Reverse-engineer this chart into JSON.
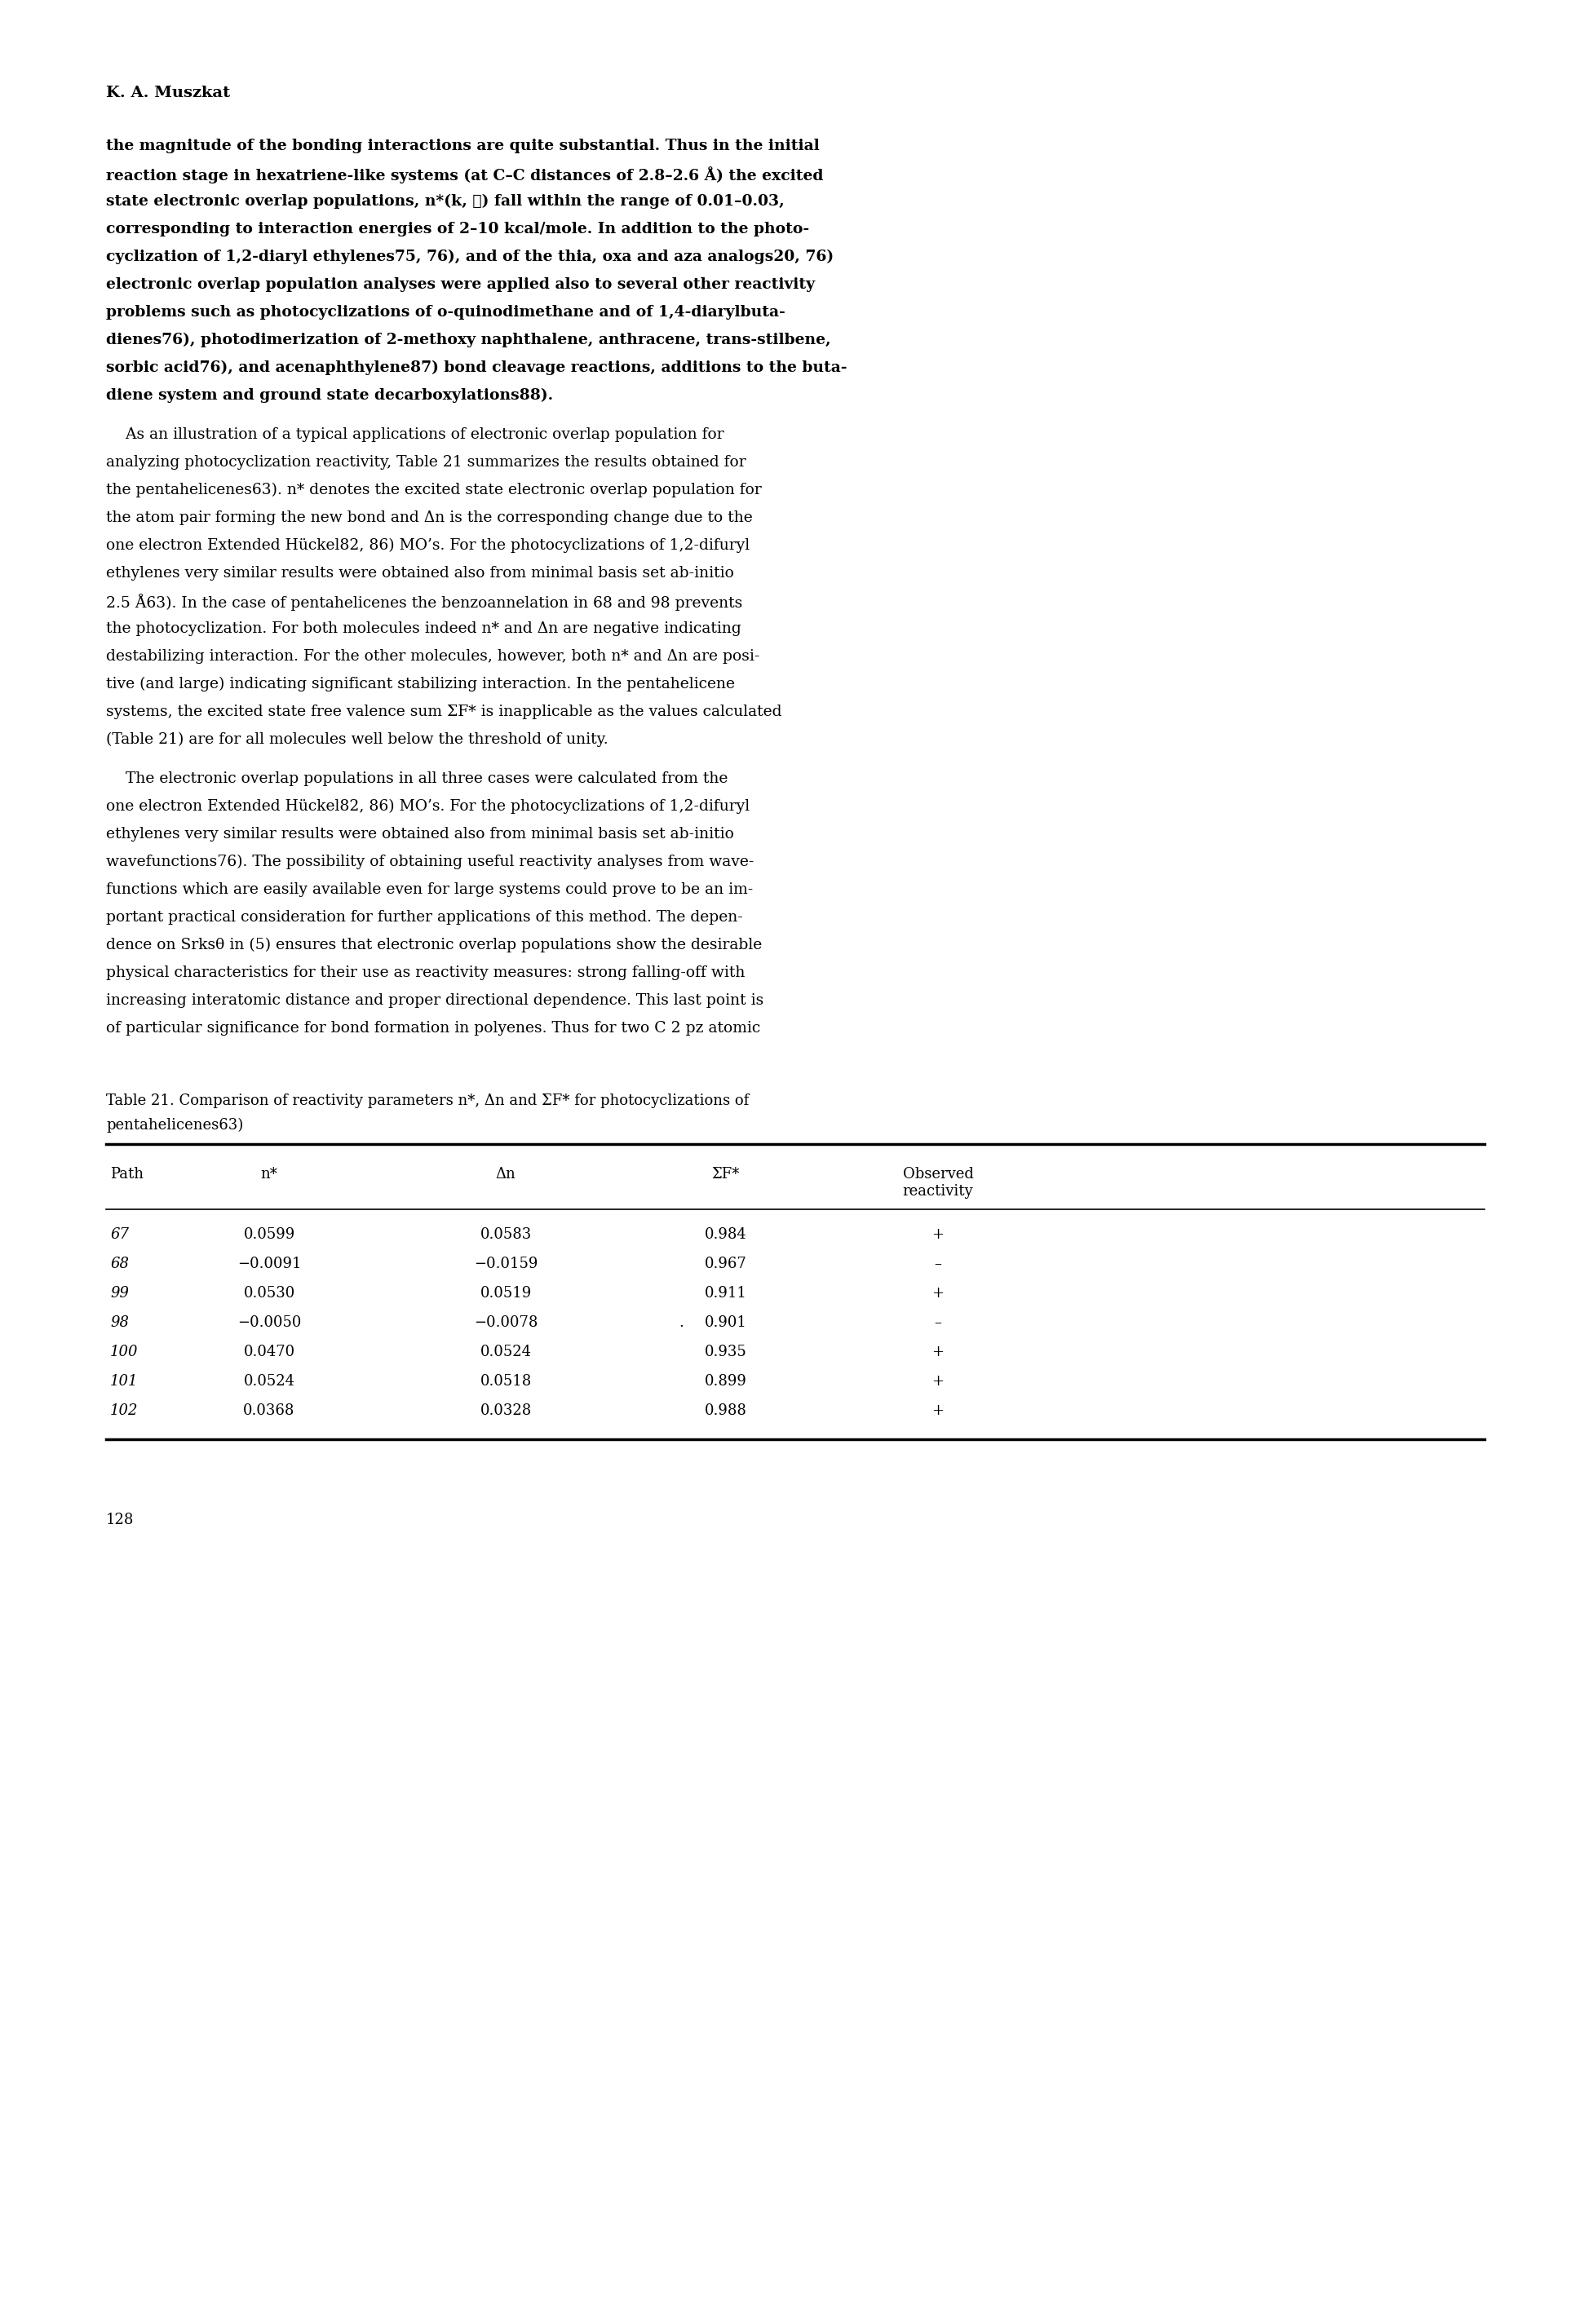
{
  "header": "K. A. Muszkat",
  "p1_lines": [
    "the magnitude of the bonding interactions are quite substantial. Thus in the initial",
    "reaction stage in hexatriene-like systems (at C–C distances of 2.8–2.6 Å) the excited",
    "state electronic overlap populations, n*(k, ℓ) fall within the range of 0.01–0.03,",
    "corresponding to interaction energies of 2–10 kcal/mole. In addition to the photo-",
    "cyclization of 1,2-diaryl ethylenes75, 76), and of the thia, oxa and aza analogs20, 76)",
    "electronic overlap population analyses were applied also to several other reactivity",
    "problems such as photocyclizations of o-quinodimethane and of 1,4-diarylbuta-",
    "dienes76), photodimerization of 2-methoxy naphthalene, anthracene, trans-stilbene,",
    "sorbic acid76), and acenaphthylene87) bond cleavage reactions, additions to the buta-",
    "diene system and ground state decarboxylations88)."
  ],
  "p1_bold": [
    true,
    true,
    true,
    true,
    true,
    true,
    true,
    true,
    true,
    true
  ],
  "p2_lines": [
    "    As an illustration of a typical applications of electronic overlap population for",
    "analyzing photocyclization reactivity, Table 21 summarizes the results obtained for",
    "the pentahelicenes63). n* denotes the excited state electronic overlap population for",
    "the atom pair forming the new bond and Δn is the corresponding change due to the",
    "one electron Extended Hückel82, 86) MO’s. For the photocyclizations of 1,2-difuryl",
    "ethylenes very similar results were obtained also from minimal basis set ab-initio",
    "2.5 Å63). In the case of pentahelicenes the benzoannelation in 68 and 98 prevents",
    "the photocyclization. For both molecules indeed n* and Δn are negative indicating",
    "destabilizing interaction. For the other molecules, however, both n* and Δn are posi-",
    "tive (and large) indicating significant stabilizing interaction. In the pentahelicene",
    "systems, the excited state free valence sum ΣF* is inapplicable as the values calculated",
    "(Table 21) are for all molecules well below the threshold of unity."
  ],
  "p3_lines": [
    "    The electronic overlap populations in all three cases were calculated from the",
    "one electron Extended Hückel82, 86) MO’s. For the photocyclizations of 1,2-difuryl",
    "ethylenes very similar results were obtained also from minimal basis set ab-initio",
    "wavefunctions76). The possibility of obtaining useful reactivity analyses from wave-",
    "functions which are easily available even for large systems could prove to be an im-",
    "portant practical consideration for further applications of this method. The depen-",
    "dence on Srksθ in (5) ensures that electronic overlap populations show the desirable",
    "physical characteristics for their use as reactivity measures: strong falling-off with",
    "increasing interatomic distance and proper directional dependence. This last point is",
    "of particular significance for bond formation in polyenes. Thus for two C 2 pz atomic"
  ],
  "table_caption_line1": "Table 21. Comparison of reactivity parameters n*, Δn and ΣF* for photocyclizations of",
  "table_caption_line2": "pentahelicenes63)",
  "table_headers": [
    "Path",
    "n*",
    "Δn",
    "ΣF*",
    "Observed\nreactivity"
  ],
  "table_data": [
    [
      "67",
      "0.0599",
      "0.0583",
      "0.984",
      "+"
    ],
    [
      "68",
      "−0.0091",
      "−0.0159",
      "0.967",
      "–"
    ],
    [
      "99",
      "0.0530",
      "0.0519",
      "0.911",
      "+"
    ],
    [
      "98",
      "−0.0050",
      "−0.0078",
      "0.901",
      "–"
    ],
    [
      "100",
      "0.0470",
      "0.0524",
      "0.935",
      "+"
    ],
    [
      "101",
      "0.0524",
      "0.0518",
      "0.899",
      "+"
    ],
    [
      "102",
      "0.0368",
      "0.0328",
      "0.988",
      "+"
    ]
  ],
  "page_number": "128",
  "bg_color": "#ffffff"
}
